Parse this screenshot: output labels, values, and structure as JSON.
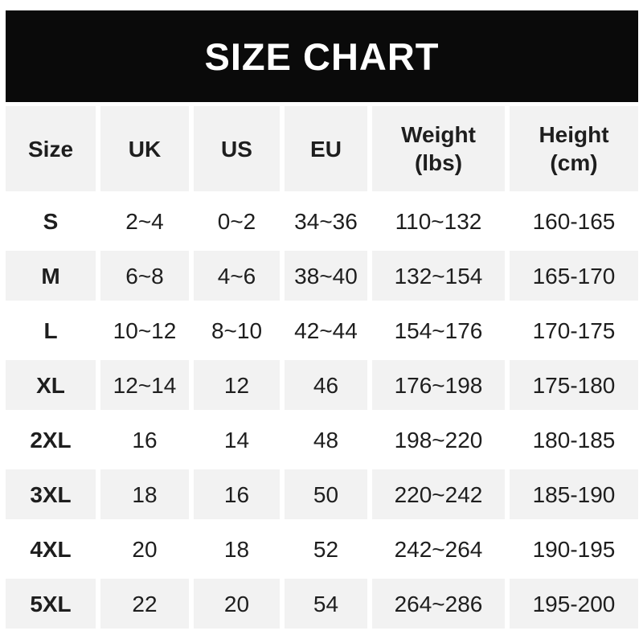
{
  "title": "SIZE CHART",
  "colors": {
    "banner_bg": "#0a0a0a",
    "banner_text": "#ffffff",
    "row_alt_bg": "#f2f2f2",
    "text": "#1e1e1e",
    "page_bg": "#ffffff"
  },
  "chart_data": {
    "type": "table",
    "title": "SIZE CHART",
    "columns": [
      "Size",
      "UK",
      "US",
      "EU",
      "Weight\n(lbs)",
      "Height\n(cm)"
    ],
    "rows": [
      [
        "S",
        "2~4",
        "0~2",
        "34~36",
        "110~132",
        "160-165"
      ],
      [
        "M",
        "6~8",
        "4~6",
        "38~40",
        "132~154",
        "165-170"
      ],
      [
        "L",
        "10~12",
        "8~10",
        "42~44",
        "154~176",
        "170-175"
      ],
      [
        "XL",
        "12~14",
        "12",
        "46",
        "176~198",
        "175-180"
      ],
      [
        "2XL",
        "16",
        "14",
        "48",
        "198~220",
        "180-185"
      ],
      [
        "3XL",
        "18",
        "16",
        "50",
        "220~242",
        "185-190"
      ],
      [
        "4XL",
        "20",
        "18",
        "52",
        "242~264",
        "190-195"
      ],
      [
        "5XL",
        "22",
        "20",
        "54",
        "264~286",
        "195-200"
      ]
    ],
    "layout": {
      "header_background": "gray",
      "row_striping": "alternating white/gray starting white after header",
      "grid": "off",
      "range_separator_weight": "~",
      "range_separator_height": "-"
    }
  }
}
